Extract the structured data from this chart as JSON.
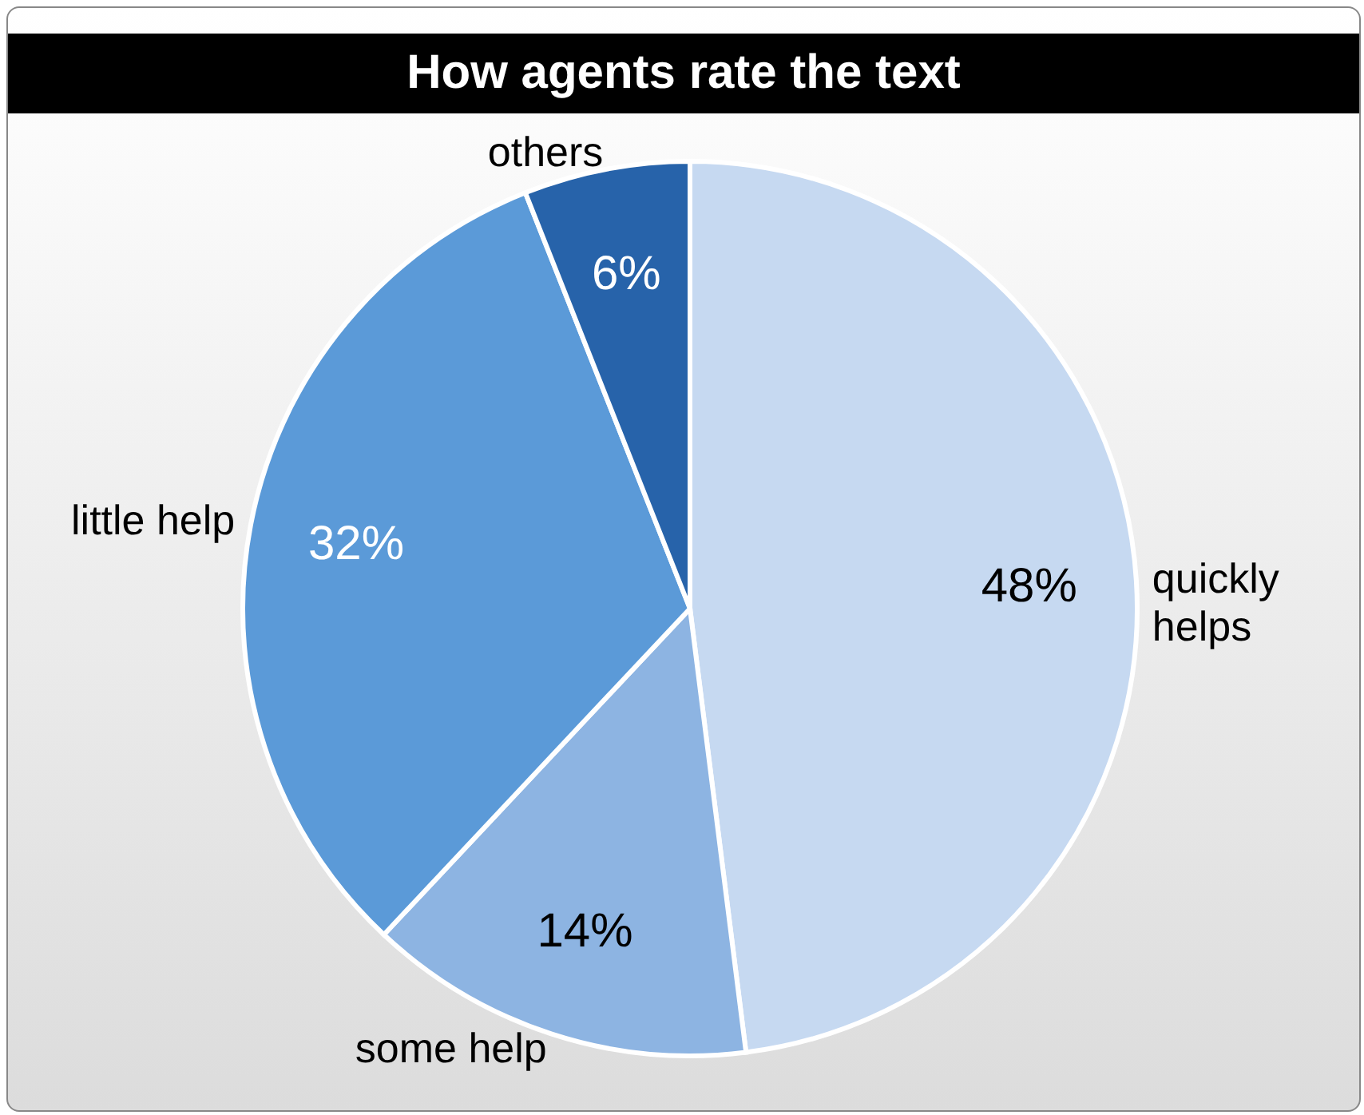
{
  "chart_data": {
    "type": "pie",
    "title": "How agents rate the text",
    "categories": [
      "quickly helps",
      "some help",
      "little help",
      "others"
    ],
    "values": [
      48,
      14,
      32,
      6
    ],
    "colors": [
      "#c6d9f1",
      "#8db4e2",
      "#5b9ad8",
      "#2763aa"
    ],
    "value_labels": [
      "48%",
      "14%",
      "32%",
      "6%"
    ]
  }
}
